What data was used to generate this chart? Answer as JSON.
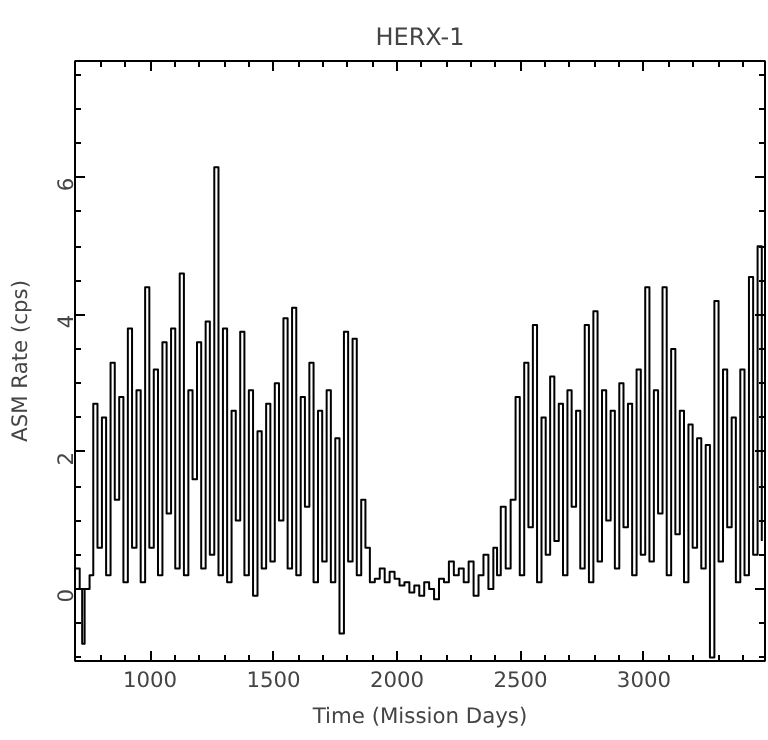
{
  "chart_data": {
    "type": "step",
    "title": "HERX-1",
    "xlabel": "Time (Mission Days)",
    "ylabel": "ASM Rate (cps)",
    "xlim": [
      696,
      3490
    ],
    "ylim": [
      -1.05,
      7.7
    ],
    "xticks": [
      1000,
      1500,
      2000,
      2500,
      3000
    ],
    "yticks": [
      0,
      2,
      4,
      6
    ],
    "grid": false,
    "series": [
      {
        "color": "#000000",
        "x": [
          700,
          715,
          725,
          735,
          755,
          770,
          787,
          805,
          822,
          840,
          857,
          875,
          892,
          910,
          927,
          945,
          962,
          980,
          997,
          1015,
          1032,
          1050,
          1067,
          1085,
          1102,
          1120,
          1137,
          1155,
          1172,
          1190,
          1207,
          1225,
          1242,
          1260,
          1277,
          1295,
          1312,
          1330,
          1347,
          1365,
          1382,
          1400,
          1417,
          1435,
          1452,
          1470,
          1487,
          1505,
          1522,
          1540,
          1557,
          1575,
          1592,
          1610,
          1627,
          1645,
          1662,
          1680,
          1697,
          1715,
          1732,
          1750,
          1767,
          1785,
          1802,
          1820,
          1837,
          1855,
          1872,
          1890,
          1910,
          1930,
          1950,
          1970,
          1990,
          2010,
          2030,
          2050,
          2070,
          2090,
          2110,
          2130,
          2150,
          2170,
          2190,
          2210,
          2230,
          2250,
          2270,
          2290,
          2310,
          2330,
          2350,
          2370,
          2390,
          2405,
          2420,
          2440,
          2460,
          2480,
          2497,
          2515,
          2532,
          2550,
          2567,
          2585,
          2602,
          2620,
          2637,
          2655,
          2672,
          2690,
          2707,
          2725,
          2742,
          2760,
          2777,
          2795,
          2812,
          2830,
          2847,
          2865,
          2882,
          2900,
          2917,
          2935,
          2952,
          2970,
          2987,
          3005,
          3022,
          3040,
          3057,
          3075,
          3092,
          3110,
          3127,
          3145,
          3162,
          3180,
          3197,
          3215,
          3232,
          3250,
          3267,
          3285,
          3302,
          3320,
          3337,
          3355,
          3372,
          3390,
          3407,
          3425,
          3442,
          3460,
          3477
        ],
        "values": [
          0.3,
          0.0,
          -0.8,
          0.0,
          0.2,
          2.7,
          0.6,
          2.5,
          0.2,
          3.3,
          1.3,
          2.8,
          0.1,
          3.8,
          0.6,
          2.9,
          0.1,
          4.4,
          0.6,
          3.2,
          0.2,
          3.6,
          1.1,
          3.8,
          0.3,
          4.6,
          0.2,
          2.9,
          1.6,
          3.6,
          0.3,
          3.9,
          0.5,
          6.15,
          0.2,
          3.8,
          0.1,
          2.6,
          1.0,
          3.75,
          0.2,
          2.9,
          -0.1,
          2.3,
          0.3,
          2.7,
          0.4,
          3.0,
          1.0,
          3.95,
          0.3,
          4.1,
          0.2,
          2.8,
          1.2,
          3.3,
          0.1,
          2.6,
          0.4,
          2.9,
          0.1,
          2.2,
          -0.65,
          3.75,
          0.4,
          3.65,
          0.2,
          1.3,
          0.6,
          0.1,
          0.15,
          0.3,
          0.1,
          0.25,
          0.15,
          0.05,
          0.1,
          -0.05,
          0.05,
          -0.1,
          0.1,
          0.0,
          -0.15,
          0.15,
          0.1,
          0.4,
          0.2,
          0.3,
          0.1,
          0.4,
          -0.1,
          0.2,
          0.5,
          0.0,
          0.6,
          0.2,
          1.2,
          0.3,
          1.3,
          2.8,
          0.2,
          3.3,
          0.9,
          3.85,
          0.1,
          2.5,
          0.5,
          3.1,
          0.7,
          2.7,
          0.2,
          2.9,
          1.2,
          2.6,
          0.3,
          3.85,
          0.1,
          4.05,
          0.4,
          2.9,
          1.0,
          2.6,
          0.3,
          3.0,
          0.9,
          2.7,
          0.2,
          3.2,
          0.5,
          4.4,
          0.4,
          2.9,
          1.1,
          4.4,
          0.2,
          3.5,
          0.8,
          2.6,
          0.1,
          2.4,
          0.6,
          2.2,
          0.3,
          2.1,
          -1.0,
          4.2,
          0.4,
          3.2,
          0.9,
          2.5,
          0.1,
          3.2,
          0.2,
          4.55,
          0.5,
          5.0,
          0.7
        ]
      }
    ]
  }
}
